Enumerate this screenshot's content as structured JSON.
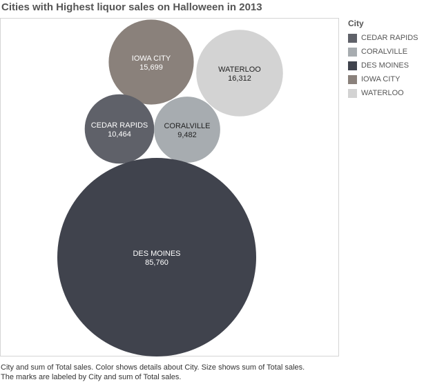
{
  "title": "Cities with Highest liquor sales on Halloween in 2013",
  "legend": {
    "title": "City",
    "items": [
      {
        "label": "CEDAR RAPIDS",
        "color": "#5f6169"
      },
      {
        "label": "CORALVILLE",
        "color": "#a7acb0"
      },
      {
        "label": "DES MOINES",
        "color": "#40434d"
      },
      {
        "label": "IOWA CITY",
        "color": "#8a817b"
      },
      {
        "label": "WATERLOO",
        "color": "#d3d3d3"
      }
    ]
  },
  "caption": {
    "line1": "City and sum of Total sales.  Color shows details about City.  Size shows sum of Total sales.",
    "line2": "The marks are labeled by City and sum of Total sales."
  },
  "chart_data": {
    "type": "bubble",
    "title": "Cities with Highest liquor sales on Halloween in 2013",
    "size_measure": "sum of Total sales",
    "color_field": "City",
    "points": [
      {
        "city": "IOWA CITY",
        "value": 15699,
        "label": "15,699",
        "color": "#8a817b",
        "text_color": "#ffffff"
      },
      {
        "city": "WATERLOO",
        "value": 16312,
        "label": "16,312",
        "color": "#d3d3d3",
        "text_color": "#222222"
      },
      {
        "city": "CEDAR RAPIDS",
        "value": 10464,
        "label": "10,464",
        "color": "#5f6169",
        "text_color": "#ffffff"
      },
      {
        "city": "CORALVILLE",
        "value": 9482,
        "label": "9,482",
        "color": "#a7acb0",
        "text_color": "#222222"
      },
      {
        "city": "DES MOINES",
        "value": 85760,
        "label": "85,760",
        "color": "#40434d",
        "text_color": "#ffffff"
      }
    ]
  }
}
